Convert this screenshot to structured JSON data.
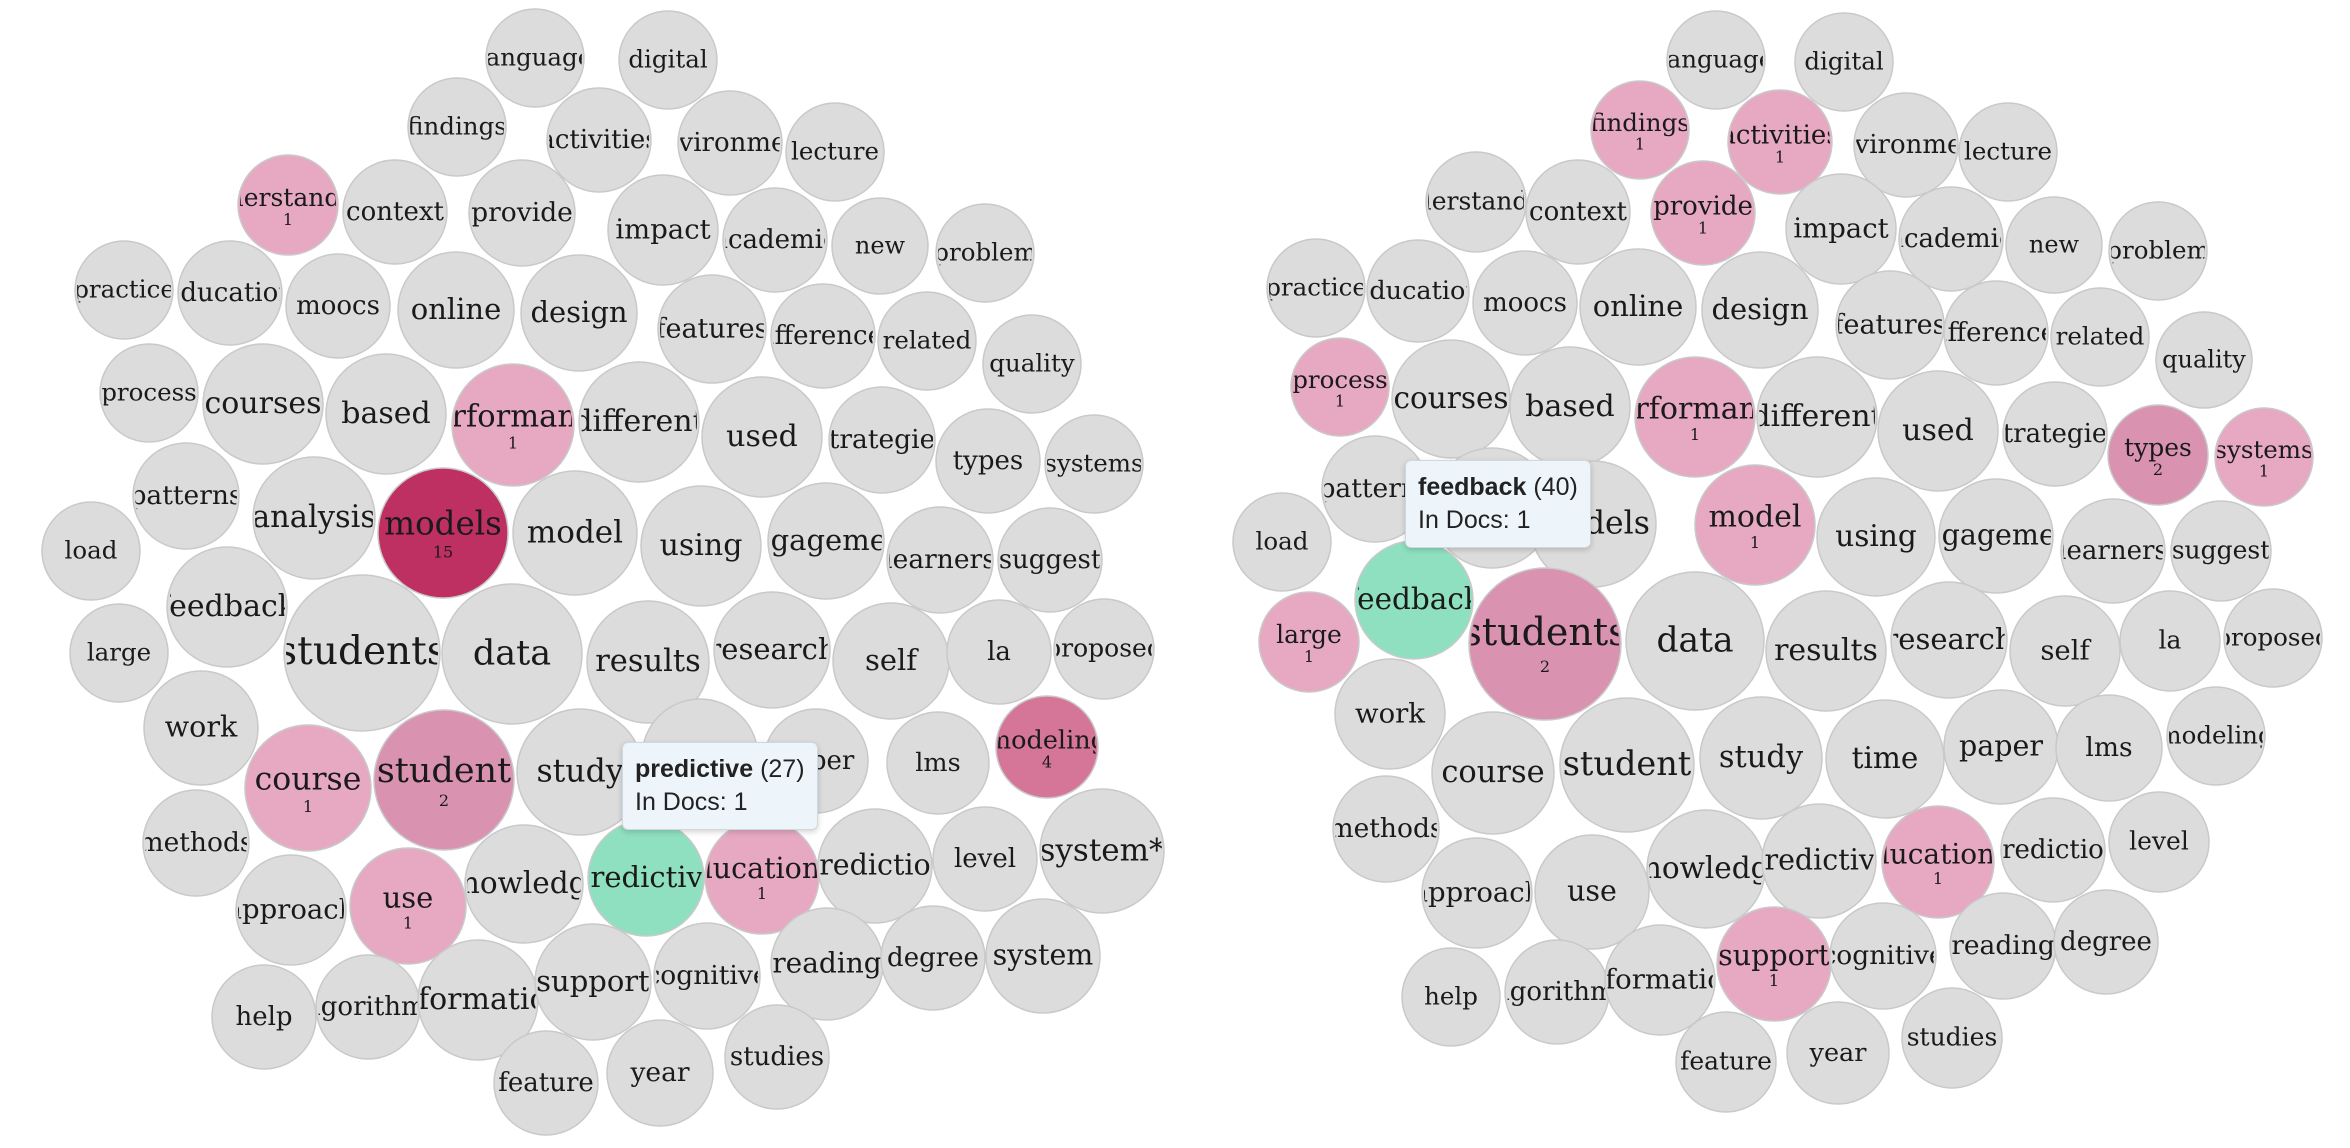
{
  "colors": {
    "gray": "#dcdcdc",
    "pink_light": "#e6a9c1",
    "pink_mid": "#d992b0",
    "pink_strong": "#d57598",
    "crimson": "#be2f62",
    "green": "#8fe0c0"
  },
  "left_cloud": {
    "tooltip": {
      "word": "predictive",
      "total": "(27)",
      "docs": "In Docs: 1"
    },
    "bubbles": [
      {
        "w": "language",
        "c": null,
        "fill": "gray"
      },
      {
        "w": "digital",
        "c": null,
        "fill": "gray"
      },
      {
        "w": "findings",
        "c": null,
        "fill": "gray"
      },
      {
        "w": "activities",
        "c": null,
        "fill": "gray"
      },
      {
        "w": "environment",
        "c": null,
        "fill": "gray"
      },
      {
        "w": "lecture",
        "c": null,
        "fill": "gray"
      },
      {
        "w": "understanding",
        "c": "1",
        "fill": "pink_light"
      },
      {
        "w": "context",
        "c": null,
        "fill": "gray"
      },
      {
        "w": "provide",
        "c": null,
        "fill": "gray"
      },
      {
        "w": "impact",
        "c": null,
        "fill": "gray"
      },
      {
        "w": "academic",
        "c": null,
        "fill": "gray"
      },
      {
        "w": "new",
        "c": null,
        "fill": "gray"
      },
      {
        "w": "problem",
        "c": null,
        "fill": "gray"
      },
      {
        "w": "practice",
        "c": null,
        "fill": "gray"
      },
      {
        "w": "education",
        "c": null,
        "fill": "gray"
      },
      {
        "w": "moocs",
        "c": null,
        "fill": "gray"
      },
      {
        "w": "online",
        "c": null,
        "fill": "gray"
      },
      {
        "w": "design",
        "c": null,
        "fill": "gray"
      },
      {
        "w": "features",
        "c": null,
        "fill": "gray"
      },
      {
        "w": "differences",
        "c": null,
        "fill": "gray"
      },
      {
        "w": "related",
        "c": null,
        "fill": "gray"
      },
      {
        "w": "quality",
        "c": null,
        "fill": "gray"
      },
      {
        "w": "process",
        "c": null,
        "fill": "gray"
      },
      {
        "w": "courses",
        "c": null,
        "fill": "gray"
      },
      {
        "w": "based",
        "c": null,
        "fill": "gray"
      },
      {
        "w": "performance",
        "c": "1",
        "fill": "pink_light"
      },
      {
        "w": "different",
        "c": null,
        "fill": "gray"
      },
      {
        "w": "used",
        "c": null,
        "fill": "gray"
      },
      {
        "w": "strategies",
        "c": null,
        "fill": "gray"
      },
      {
        "w": "types",
        "c": null,
        "fill": "gray"
      },
      {
        "w": "systems",
        "c": null,
        "fill": "gray"
      },
      {
        "w": "patterns",
        "c": null,
        "fill": "gray"
      },
      {
        "w": "analysis",
        "c": null,
        "fill": "gray"
      },
      {
        "w": "models",
        "c": "15",
        "fill": "crimson"
      },
      {
        "w": "model",
        "c": null,
        "fill": "gray"
      },
      {
        "w": "using",
        "c": null,
        "fill": "gray"
      },
      {
        "w": "engagement",
        "c": null,
        "fill": "gray"
      },
      {
        "w": "learners",
        "c": null,
        "fill": "gray"
      },
      {
        "w": "suggest",
        "c": null,
        "fill": "gray"
      },
      {
        "w": "load",
        "c": null,
        "fill": "gray"
      },
      {
        "w": "feedback",
        "c": null,
        "fill": "gray"
      },
      {
        "w": "students",
        "c": null,
        "fill": "gray"
      },
      {
        "w": "data",
        "c": null,
        "fill": "gray"
      },
      {
        "w": "results",
        "c": null,
        "fill": "gray"
      },
      {
        "w": "research",
        "c": null,
        "fill": "gray"
      },
      {
        "w": "self",
        "c": null,
        "fill": "gray"
      },
      {
        "w": "la",
        "c": null,
        "fill": "gray"
      },
      {
        "w": "proposed",
        "c": null,
        "fill": "gray"
      },
      {
        "w": "large",
        "c": null,
        "fill": "gray"
      },
      {
        "w": "work",
        "c": null,
        "fill": "gray"
      },
      {
        "w": "course",
        "c": "1",
        "fill": "pink_light"
      },
      {
        "w": "student",
        "c": "2",
        "fill": "pink_mid"
      },
      {
        "w": "study",
        "c": null,
        "fill": "gray"
      },
      {
        "w": "time",
        "c": null,
        "fill": "gray"
      },
      {
        "w": "paper",
        "c": null,
        "fill": "gray"
      },
      {
        "w": "lms",
        "c": null,
        "fill": "gray"
      },
      {
        "w": "modeling",
        "c": "4",
        "fill": "pink_strong"
      },
      {
        "w": "methods",
        "c": null,
        "fill": "gray"
      },
      {
        "w": "approach",
        "c": null,
        "fill": "gray"
      },
      {
        "w": "use",
        "c": "1",
        "fill": "pink_light"
      },
      {
        "w": "knowledge",
        "c": null,
        "fill": "gray"
      },
      {
        "w": "predictive",
        "c": null,
        "fill": "green"
      },
      {
        "w": "educational",
        "c": "1",
        "fill": "pink_light"
      },
      {
        "w": "prediction",
        "c": null,
        "fill": "gray"
      },
      {
        "w": "level",
        "c": null,
        "fill": "gray"
      },
      {
        "w": "system*",
        "c": null,
        "fill": "gray"
      },
      {
        "w": "help",
        "c": null,
        "fill": "gray"
      },
      {
        "w": "algorithms",
        "c": null,
        "fill": "gray"
      },
      {
        "w": "information",
        "c": null,
        "fill": "gray"
      },
      {
        "w": "support",
        "c": null,
        "fill": "gray"
      },
      {
        "w": "cognitive",
        "c": null,
        "fill": "gray"
      },
      {
        "w": "reading",
        "c": null,
        "fill": "gray"
      },
      {
        "w": "degree",
        "c": null,
        "fill": "gray"
      },
      {
        "w": "system",
        "c": null,
        "fill": "gray"
      },
      {
        "w": "feature",
        "c": null,
        "fill": "gray"
      },
      {
        "w": "year",
        "c": null,
        "fill": "gray"
      },
      {
        "w": "studies",
        "c": null,
        "fill": "gray"
      }
    ]
  },
  "right_cloud": {
    "tooltip": {
      "word": "feedback",
      "total": "(40)",
      "docs": "In Docs: 1"
    },
    "bubbles": [
      {
        "w": "language",
        "c": null,
        "fill": "gray"
      },
      {
        "w": "digital",
        "c": null,
        "fill": "gray"
      },
      {
        "w": "findings",
        "c": "1",
        "fill": "pink_light"
      },
      {
        "w": "activities",
        "c": "1",
        "fill": "pink_light"
      },
      {
        "w": "environment",
        "c": null,
        "fill": "gray"
      },
      {
        "w": "lecture",
        "c": null,
        "fill": "gray"
      },
      {
        "w": "understanding",
        "c": null,
        "fill": "gray"
      },
      {
        "w": "context",
        "c": null,
        "fill": "gray"
      },
      {
        "w": "provide",
        "c": "1",
        "fill": "pink_light"
      },
      {
        "w": "impact",
        "c": null,
        "fill": "gray"
      },
      {
        "w": "academic",
        "c": null,
        "fill": "gray"
      },
      {
        "w": "new",
        "c": null,
        "fill": "gray"
      },
      {
        "w": "problem",
        "c": null,
        "fill": "gray"
      },
      {
        "w": "practice",
        "c": null,
        "fill": "gray"
      },
      {
        "w": "education",
        "c": null,
        "fill": "gray"
      },
      {
        "w": "moocs",
        "c": null,
        "fill": "gray"
      },
      {
        "w": "online",
        "c": null,
        "fill": "gray"
      },
      {
        "w": "design",
        "c": null,
        "fill": "gray"
      },
      {
        "w": "features",
        "c": null,
        "fill": "gray"
      },
      {
        "w": "differences",
        "c": null,
        "fill": "gray"
      },
      {
        "w": "related",
        "c": null,
        "fill": "gray"
      },
      {
        "w": "quality",
        "c": null,
        "fill": "gray"
      },
      {
        "w": "process",
        "c": "1",
        "fill": "pink_light"
      },
      {
        "w": "courses",
        "c": null,
        "fill": "gray"
      },
      {
        "w": "based",
        "c": null,
        "fill": "gray"
      },
      {
        "w": "performance",
        "c": "1",
        "fill": "pink_light"
      },
      {
        "w": "different",
        "c": null,
        "fill": "gray"
      },
      {
        "w": "used",
        "c": null,
        "fill": "gray"
      },
      {
        "w": "strategies",
        "c": null,
        "fill": "gray"
      },
      {
        "w": "types",
        "c": "2",
        "fill": "pink_mid"
      },
      {
        "w": "systems",
        "c": "1",
        "fill": "pink_light"
      },
      {
        "w": "patterns",
        "c": null,
        "fill": "gray"
      },
      {
        "w": "analysis",
        "c": null,
        "fill": "gray"
      },
      {
        "w": "models",
        "c": null,
        "fill": "gray"
      },
      {
        "w": "model",
        "c": "1",
        "fill": "pink_light"
      },
      {
        "w": "using",
        "c": null,
        "fill": "gray"
      },
      {
        "w": "engagement",
        "c": null,
        "fill": "gray"
      },
      {
        "w": "learners",
        "c": null,
        "fill": "gray"
      },
      {
        "w": "suggest",
        "c": null,
        "fill": "gray"
      },
      {
        "w": "load",
        "c": null,
        "fill": "gray"
      },
      {
        "w": "feedback",
        "c": null,
        "fill": "green"
      },
      {
        "w": "students",
        "c": "2",
        "fill": "pink_mid"
      },
      {
        "w": "data",
        "c": null,
        "fill": "gray"
      },
      {
        "w": "results",
        "c": null,
        "fill": "gray"
      },
      {
        "w": "research",
        "c": null,
        "fill": "gray"
      },
      {
        "w": "self",
        "c": null,
        "fill": "gray"
      },
      {
        "w": "la",
        "c": null,
        "fill": "gray"
      },
      {
        "w": "proposed",
        "c": null,
        "fill": "gray"
      },
      {
        "w": "large",
        "c": "1",
        "fill": "pink_light"
      },
      {
        "w": "work",
        "c": null,
        "fill": "gray"
      },
      {
        "w": "course",
        "c": null,
        "fill": "gray"
      },
      {
        "w": "student",
        "c": null,
        "fill": "gray"
      },
      {
        "w": "study",
        "c": null,
        "fill": "gray"
      },
      {
        "w": "time",
        "c": null,
        "fill": "gray"
      },
      {
        "w": "paper",
        "c": null,
        "fill": "gray"
      },
      {
        "w": "lms",
        "c": null,
        "fill": "gray"
      },
      {
        "w": "modeling",
        "c": null,
        "fill": "gray"
      },
      {
        "w": "methods",
        "c": null,
        "fill": "gray"
      },
      {
        "w": "approach",
        "c": null,
        "fill": "gray"
      },
      {
        "w": "use",
        "c": null,
        "fill": "gray"
      },
      {
        "w": "knowledge",
        "c": null,
        "fill": "gray"
      },
      {
        "w": "predictive",
        "c": null,
        "fill": "gray"
      },
      {
        "w": "educational",
        "c": "1",
        "fill": "pink_light"
      },
      {
        "w": "prediction",
        "c": null,
        "fill": "gray"
      },
      {
        "w": "level",
        "c": null,
        "fill": "gray"
      },
      {
        "w": "help",
        "c": null,
        "fill": "gray"
      },
      {
        "w": "algorithms",
        "c": null,
        "fill": "gray"
      },
      {
        "w": "information",
        "c": null,
        "fill": "gray"
      },
      {
        "w": "support",
        "c": "1",
        "fill": "pink_light"
      },
      {
        "w": "cognitive",
        "c": null,
        "fill": "gray"
      },
      {
        "w": "reading",
        "c": null,
        "fill": "gray"
      },
      {
        "w": "degree",
        "c": null,
        "fill": "gray"
      },
      {
        "w": "feature",
        "c": null,
        "fill": "gray"
      },
      {
        "w": "year",
        "c": null,
        "fill": "gray"
      },
      {
        "w": "studies",
        "c": null,
        "fill": "gray"
      }
    ]
  }
}
